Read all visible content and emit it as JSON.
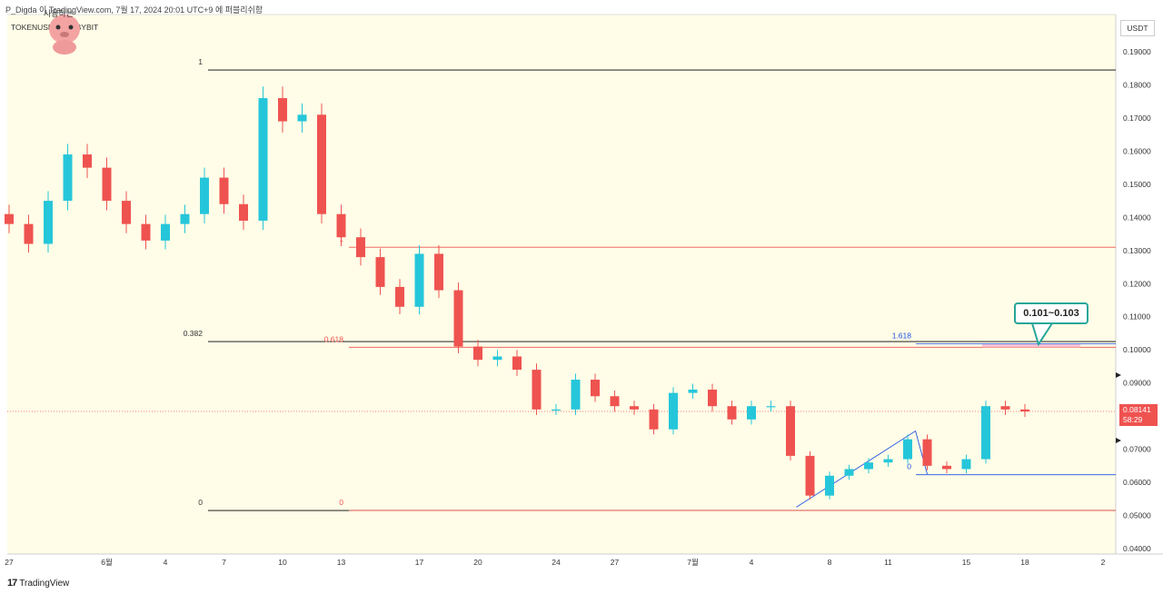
{
  "header": {
    "title_line": "P_Digda 이 TradingView.com, 7월 17, 2024 20:01 UTC+9 에 퍼블리쉬함",
    "symbol_line": "TOKENUSDT, 1D, BYBIT",
    "avatar_label": "사용하는"
  },
  "footer": {
    "brand": "TradingView",
    "brand_mark": "17"
  },
  "price_axis": {
    "unit": "USDT",
    "last_price": "0.08141",
    "countdown": "58:29"
  },
  "annotation": {
    "callout_text": "0.101~0.103"
  },
  "colors": {
    "background": "#fffde7",
    "up": "#26c6da",
    "down": "#ef5350",
    "black_fib": "#000000",
    "red_fib": "#ef5350",
    "blue_fib": "#1e53e5",
    "zone_fill": "#f8bbd0",
    "accent": "#26a69a"
  },
  "chart_data": {
    "type": "candlestick",
    "y_axis": {
      "min": 0.04,
      "max": 0.19,
      "ticks": [
        "0.19000",
        "0.18000",
        "0.17000",
        "0.16000",
        "0.15000",
        "0.14000",
        "0.13000",
        "0.12000",
        "0.11000",
        "0.10000",
        "0.09000",
        "0.08000",
        "0.07000",
        "0.06000",
        "0.05000",
        "0.04000"
      ]
    },
    "x_axis": {
      "ticks": [
        {
          "label": "27",
          "bar": 0
        },
        {
          "label": "6월",
          "bar": 5
        },
        {
          "label": "4",
          "bar": 8
        },
        {
          "label": "7",
          "bar": 11
        },
        {
          "label": "10",
          "bar": 14
        },
        {
          "label": "13",
          "bar": 17
        },
        {
          "label": "17",
          "bar": 21
        },
        {
          "label": "20",
          "bar": 24
        },
        {
          "label": "24",
          "bar": 28
        },
        {
          "label": "27",
          "bar": 31
        },
        {
          "label": "7월",
          "bar": 35
        },
        {
          "label": "4",
          "bar": 38
        },
        {
          "label": "8",
          "bar": 42
        },
        {
          "label": "11",
          "bar": 45
        },
        {
          "label": "15",
          "bar": 49
        },
        {
          "label": "18",
          "bar": 52
        },
        {
          "label": "2",
          "bar": 56
        }
      ]
    },
    "closes": [
      0.138,
      0.132,
      0.145,
      0.159,
      0.155,
      0.145,
      0.138,
      0.133,
      0.138,
      0.141,
      0.152,
      0.144,
      0.139,
      0.176,
      0.169,
      0.171,
      0.141,
      0.134,
      0.128,
      0.119,
      0.113,
      0.129,
      0.118,
      0.101,
      0.097,
      0.098,
      0.094,
      0.082,
      0.082,
      0.091,
      0.086,
      0.083,
      0.082,
      0.076,
      0.087,
      0.088,
      0.083,
      0.079,
      0.083,
      0.083,
      0.068,
      0.056,
      0.062,
      0.064,
      0.066,
      0.067,
      0.073,
      0.065,
      0.064,
      0.067,
      0.083,
      0.082,
      0.0814
    ],
    "fib_black": {
      "levels": [
        {
          "label": "1",
          "value": 0.1845
        },
        {
          "label": "0.382",
          "value": 0.1025
        },
        {
          "label": "0",
          "value": 0.0515
        }
      ]
    },
    "fib_red": {
      "levels": [
        {
          "label": "1",
          "value": 0.131
        },
        {
          "label": "0.618",
          "value": 0.1008
        },
        {
          "label": "0",
          "value": 0.0515
        }
      ]
    },
    "fib_blue": {
      "levels": [
        {
          "label": "1.618",
          "value": 0.1018
        },
        {
          "label": "0",
          "value": 0.0623
        }
      ]
    },
    "last_price_value": 0.08141
  }
}
